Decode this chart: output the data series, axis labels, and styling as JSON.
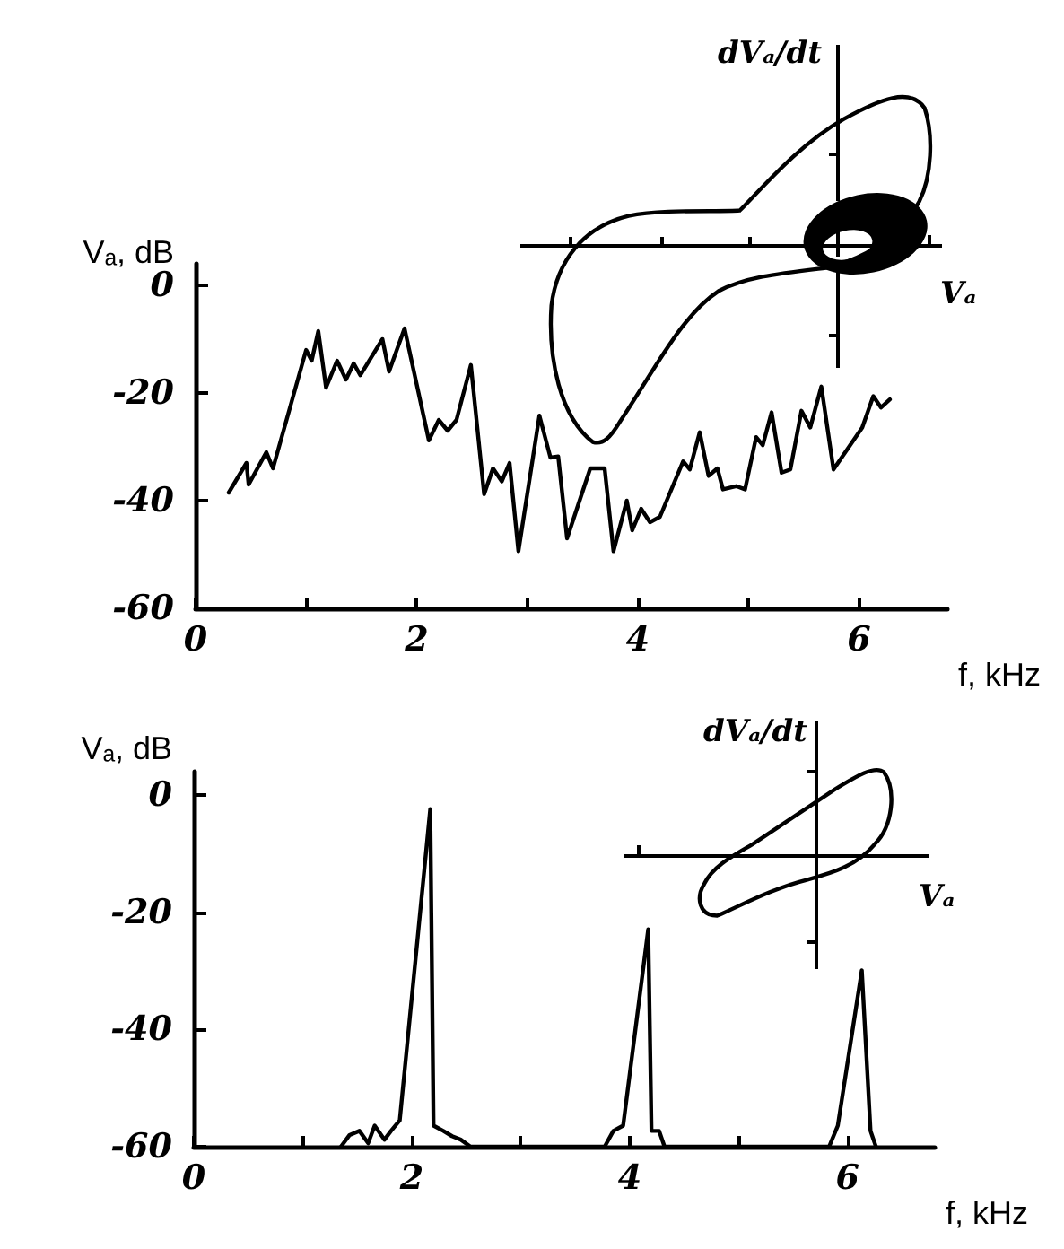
{
  "chart_data": [
    {
      "type": "line",
      "ylabel": "Vₐ, dB",
      "xlabel": "f, kHz",
      "annotations": [
        "dVₐ/dt",
        "Vₐ"
      ],
      "xlim": [
        0,
        6.8
      ],
      "xticks": [
        0,
        {
          "value": 1,
          "label": null
        },
        2,
        {
          "value": 3,
          "label": null
        },
        4,
        {
          "value": 5,
          "label": null
        },
        6
      ],
      "ylim": [
        -60,
        4
      ],
      "yticks": [
        0,
        -20,
        -40,
        -60
      ],
      "x": [
        0.3,
        0.46,
        0.48,
        0.64,
        0.7,
        1.0,
        1.05,
        1.11,
        1.18,
        1.28,
        1.36,
        1.43,
        1.49,
        1.69,
        1.75,
        1.89,
        2.11,
        2.2,
        2.28,
        2.36,
        2.49,
        2.61,
        2.69,
        2.77,
        2.84,
        2.92,
        3.11,
        3.21,
        3.28,
        3.36,
        3.57,
        3.7,
        3.78,
        3.9,
        3.95,
        4.03,
        4.11,
        4.2,
        4.41,
        4.47,
        4.56,
        4.64,
        4.72,
        4.77,
        4.89,
        4.97,
        5.07,
        5.13,
        5.21,
        5.3,
        5.38,
        5.48,
        5.56,
        5.66,
        5.77,
        5.87,
        5.97,
        6.03,
        6.13,
        6.2,
        6.28
      ],
      "series": [
        {
          "color": "#000000",
          "values": [
            -38.5,
            -33,
            -37,
            -31,
            -34,
            -12,
            -14,
            -8.5,
            -19,
            -14,
            -17.5,
            -14.5,
            -16.7,
            -10,
            -16,
            -8,
            -28.8,
            -25,
            -27,
            -25,
            -14.8,
            -38.8,
            -34,
            -36.4,
            -33,
            -49.4,
            -24.2,
            -32,
            -31.8,
            -47,
            -34,
            -34,
            -49.4,
            -40,
            -45.5,
            -41.5,
            -44,
            -43,
            -32.7,
            -34.2,
            -27.3,
            -35.4,
            -34,
            -37.9,
            -37.3,
            -37.9,
            -28.2,
            -29.7,
            -23.6,
            -34.8,
            -34.2,
            -23.3,
            -26.4,
            -18.8,
            -34.2,
            -31.2,
            -28.2,
            -26.4,
            -20.6,
            -22.7,
            -21.2
          ]
        }
      ]
    },
    {
      "type": "line",
      "ylabel": "Vₐ, dB",
      "xlabel": "f, kHz",
      "annotations": [
        "dVₐ/dt",
        "Vₐ"
      ],
      "xlim": [
        0,
        6.8
      ],
      "xticks": [
        0,
        {
          "value": 1,
          "label": null
        },
        2,
        {
          "value": 3,
          "label": null
        },
        4,
        {
          "value": 5,
          "label": null
        },
        6
      ],
      "ylim": [
        -60,
        4
      ],
      "yticks": [
        0,
        -20,
        -40,
        -60
      ],
      "x": [
        1.35,
        1.43,
        1.52,
        1.6,
        1.66,
        1.75,
        1.81,
        1.89,
        2.17,
        2.2,
        2.29,
        2.37,
        2.45,
        2.54,
        3.77,
        3.85,
        3.94,
        4.17,
        4.2,
        4.27,
        4.32,
        5.83,
        5.91,
        6.13,
        6.21,
        6.26
      ],
      "series": [
        {
          "color": "#000000",
          "values": [
            -60,
            -58,
            -57.3,
            -59.4,
            -56.4,
            -58.8,
            -57.3,
            -55.5,
            -2.4,
            -56.4,
            -57.3,
            -58.2,
            -58.8,
            -60,
            -60,
            -57.3,
            -56.4,
            -22.9,
            -57.3,
            -57.3,
            -60,
            -60,
            -56.4,
            -29.9,
            -57.3,
            -60
          ]
        }
      ]
    }
  ]
}
